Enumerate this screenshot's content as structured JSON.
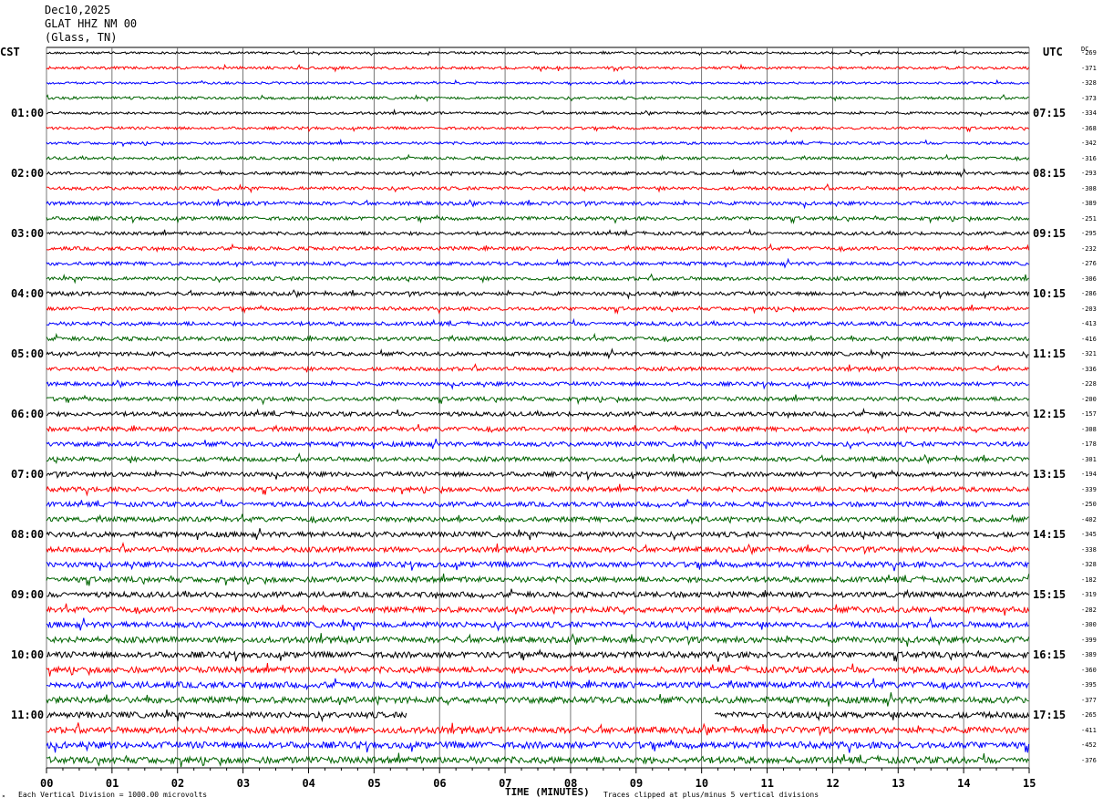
{
  "header": {
    "date": "Dec10,2025",
    "station": "GLAT HHZ NM 00",
    "location": "(Glass, TN)"
  },
  "left_tz": "CST",
  "right_tz": "UTC",
  "dc_header": "DC",
  "footer": {
    "scale_note": "Each Vertical Division = 1000.00 microvolts",
    "clip_note": "Traces clipped at plus/minus 5 vertical divisions"
  },
  "colors": {
    "trace_cycle": [
      "#000000",
      "#ff0000",
      "#0000ff",
      "#006400"
    ],
    "grid": "#000000"
  },
  "chart_data": {
    "type": "line",
    "title": "",
    "xlabel": "TIME (MINUTES)",
    "ylabel": "",
    "xlim": [
      0,
      15
    ],
    "x_ticks": [
      "00",
      "01",
      "02",
      "03",
      "04",
      "05",
      "06",
      "07",
      "08",
      "09",
      "10",
      "11",
      "12",
      "13",
      "14",
      "15"
    ],
    "grid": "vertical minute lines",
    "rows_per_hour": 4,
    "left_time_labels": [
      {
        "row": 4,
        "label": "01:00"
      },
      {
        "row": 8,
        "label": "02:00"
      },
      {
        "row": 12,
        "label": "03:00"
      },
      {
        "row": 16,
        "label": "04:00"
      },
      {
        "row": 20,
        "label": "05:00"
      },
      {
        "row": 24,
        "label": "06:00"
      },
      {
        "row": 28,
        "label": "07:00"
      },
      {
        "row": 32,
        "label": "08:00"
      },
      {
        "row": 36,
        "label": "09:00"
      },
      {
        "row": 40,
        "label": "10:00"
      },
      {
        "row": 44,
        "label": "11:00"
      }
    ],
    "right_time_labels": [
      {
        "row": 4,
        "label": "07:15"
      },
      {
        "row": 8,
        "label": "08:15"
      },
      {
        "row": 12,
        "label": "09:15"
      },
      {
        "row": 16,
        "label": "10:15"
      },
      {
        "row": 20,
        "label": "11:15"
      },
      {
        "row": 24,
        "label": "12:15"
      },
      {
        "row": 28,
        "label": "13:15"
      },
      {
        "row": 32,
        "label": "14:15"
      },
      {
        "row": 36,
        "label": "15:15"
      },
      {
        "row": 40,
        "label": "16:15"
      },
      {
        "row": 44,
        "label": "17:15"
      }
    ],
    "dc_offsets": [
      "-269",
      "-371",
      "-328",
      "-373",
      "-334",
      "-368",
      "-342",
      "-316",
      "-293",
      "-308",
      "-389",
      "-251",
      "-295",
      "-232",
      "-276",
      "-306",
      "-286",
      "-203",
      "-413",
      "-416",
      "-321",
      "-336",
      "-228",
      "-200",
      "-157",
      "-308",
      "-178",
      "-301",
      "-194",
      "-339",
      "-250",
      "-402",
      "-345",
      "-338",
      "-328",
      "-182",
      "-319",
      "-282",
      "-300",
      "-399",
      "-389",
      "-360",
      "-395",
      "-377",
      "-265",
      "-411",
      "-452",
      "-376"
    ],
    "trace_gap": {
      "row": 44,
      "from_minute": 5.5,
      "to_minute": 10.2
    },
    "trace_activity": [
      0.5,
      0.6,
      0.5,
      0.6,
      0.55,
      0.6,
      0.6,
      0.65,
      0.7,
      0.75,
      0.8,
      0.8,
      0.75,
      0.8,
      0.8,
      0.8,
      0.85,
      0.8,
      0.85,
      0.9,
      0.85,
      0.85,
      0.85,
      0.9,
      0.95,
      1.0,
      1.0,
      1.0,
      1.0,
      1.05,
      1.05,
      1.1,
      1.15,
      1.15,
      1.2,
      1.2,
      1.2,
      1.25,
      1.25,
      1.3,
      1.3,
      1.35,
      1.35,
      1.4,
      1.3,
      1.4,
      1.45,
      1.45
    ]
  }
}
